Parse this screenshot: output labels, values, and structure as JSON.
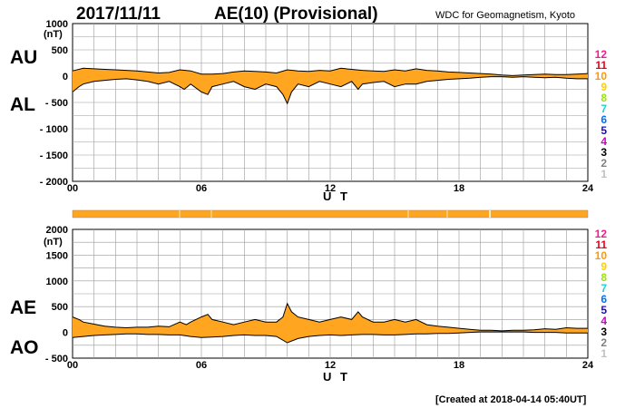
{
  "header": {
    "date": "2017/11/11",
    "title": "AE(10) (Provisional)",
    "source": "WDC for Geomagnetism, Kyoto"
  },
  "footer": {
    "created": "[Created at 2018-04-14 05:40UT]"
  },
  "stations": {
    "labels": [
      "12",
      "11",
      "10",
      "9",
      "8",
      "7",
      "6",
      "5",
      "4",
      "3",
      "2",
      "1"
    ],
    "colors": [
      "#ff1493",
      "#e8001c",
      "#ff9900",
      "#ffd000",
      "#99e600",
      "#20d0d0",
      "#0070ff",
      "#1a0ccc",
      "#cc00cc",
      "#000000",
      "#808080",
      "#c0c0c0"
    ]
  },
  "colors": {
    "fill": "#ffa51f",
    "line": "#000000",
    "grid": "#999999"
  },
  "chart_data": [
    {
      "type": "area",
      "title": "AU / AL",
      "labels": {
        "upper": "AU",
        "lower": "AL"
      },
      "unit": "(nT)",
      "xlabel": "U T",
      "xlim": [
        0,
        24
      ],
      "ylim": [
        -2000,
        1000
      ],
      "yticks": [
        1000,
        500,
        0,
        -500,
        -1000,
        -1500,
        -2000
      ],
      "ytick_labels": [
        "1000",
        "500",
        "0",
        "- 500",
        "- 1000",
        "- 1500",
        "- 2000"
      ],
      "xticks": [
        0,
        6,
        12,
        18,
        24
      ],
      "xtick_labels": [
        "00",
        "06",
        "12",
        "18",
        "24"
      ],
      "series": [
        {
          "name": "AU",
          "x": [
            0,
            0.5,
            1,
            1.5,
            2,
            2.5,
            3,
            3.5,
            4,
            4.5,
            5,
            5.5,
            6,
            6.5,
            7,
            7.5,
            8,
            8.5,
            9,
            9.5,
            10,
            10.5,
            11,
            11.5,
            12,
            12.5,
            13,
            13.5,
            14,
            14.5,
            15,
            15.5,
            16,
            16.5,
            17,
            17.5,
            18,
            18.5,
            19,
            19.5,
            20,
            20.5,
            21,
            21.5,
            22,
            22.5,
            23,
            23.5,
            24
          ],
          "values": [
            100,
            150,
            140,
            130,
            120,
            110,
            100,
            80,
            60,
            70,
            120,
            100,
            40,
            40,
            50,
            80,
            100,
            90,
            80,
            60,
            120,
            100,
            90,
            110,
            100,
            150,
            130,
            110,
            100,
            90,
            120,
            100,
            140,
            110,
            100,
            80,
            70,
            60,
            50,
            40,
            20,
            10,
            20,
            30,
            40,
            30,
            30,
            40,
            50
          ]
        },
        {
          "name": "AL",
          "x": [
            0,
            0.3,
            0.5,
            1,
            1.5,
            2,
            2.5,
            3,
            3.5,
            4,
            4.5,
            5,
            5.2,
            5.5,
            6,
            6.3,
            6.5,
            7,
            7.5,
            8,
            8.5,
            9,
            9.5,
            9.8,
            10,
            10.2,
            10.5,
            11,
            11.5,
            12,
            12.5,
            13,
            13.3,
            13.5,
            14,
            14.5,
            15,
            15.5,
            16,
            16.5,
            17,
            17.5,
            18,
            18.5,
            19,
            19.5,
            20,
            20.5,
            21,
            21.5,
            22,
            22.5,
            23,
            23.5,
            24
          ],
          "values": [
            -300,
            -200,
            -150,
            -100,
            -80,
            -60,
            -50,
            -70,
            -100,
            -150,
            -100,
            -200,
            -250,
            -150,
            -300,
            -350,
            -200,
            -150,
            -100,
            -200,
            -250,
            -150,
            -200,
            -350,
            -520,
            -300,
            -150,
            -200,
            -100,
            -150,
            -200,
            -100,
            -250,
            -150,
            -120,
            -100,
            -200,
            -150,
            -150,
            -100,
            -80,
            -60,
            -50,
            -40,
            -20,
            -10,
            -10,
            -20,
            -10,
            -20,
            -30,
            -20,
            -40,
            -50,
            -50
          ]
        }
      ]
    },
    {
      "type": "area",
      "title": "AE / AO",
      "labels": {
        "upper": "AE",
        "lower": "AO"
      },
      "unit": "(nT)",
      "xlabel": "U T",
      "xlim": [
        0,
        24
      ],
      "ylim": [
        -500,
        2000
      ],
      "yticks": [
        2000,
        1500,
        1000,
        500,
        0,
        -500
      ],
      "ytick_labels": [
        "2000",
        "1500",
        "1000",
        "500",
        "0",
        "- 500"
      ],
      "xticks": [
        0,
        6,
        12,
        18,
        24
      ],
      "xtick_labels": [
        "00",
        "06",
        "12",
        "18",
        "24"
      ],
      "series": [
        {
          "name": "AE",
          "x": [
            0,
            0.3,
            0.5,
            1,
            1.5,
            2,
            2.5,
            3,
            3.5,
            4,
            4.5,
            5,
            5.3,
            5.5,
            6,
            6.3,
            6.5,
            7,
            7.5,
            8,
            8.5,
            9,
            9.5,
            9.8,
            10,
            10.2,
            10.5,
            11,
            11.5,
            12,
            12.5,
            13,
            13.3,
            13.5,
            14,
            14.5,
            15,
            15.5,
            16,
            16.5,
            17,
            17.5,
            18,
            18.5,
            19,
            19.5,
            20,
            20.5,
            21,
            21.5,
            22,
            22.5,
            23,
            23.5,
            24
          ],
          "values": [
            300,
            250,
            200,
            160,
            120,
            100,
            90,
            100,
            100,
            120,
            110,
            200,
            150,
            200,
            300,
            350,
            250,
            200,
            150,
            200,
            250,
            200,
            200,
            300,
            560,
            400,
            300,
            250,
            200,
            250,
            300,
            250,
            400,
            300,
            200,
            200,
            250,
            200,
            250,
            150,
            120,
            100,
            80,
            60,
            40,
            40,
            30,
            40,
            40,
            50,
            70,
            60,
            90,
            80,
            80
          ]
        },
        {
          "name": "AO",
          "x": [
            0,
            0.5,
            1,
            1.5,
            2,
            2.5,
            3,
            3.5,
            4,
            4.5,
            5,
            5.5,
            6,
            6.5,
            7,
            7.5,
            8,
            8.5,
            9,
            9.5,
            10,
            10.5,
            11,
            11.5,
            12,
            12.5,
            13,
            13.5,
            14,
            14.5,
            15,
            15.5,
            16,
            16.5,
            17,
            17.5,
            18,
            18.5,
            19,
            19.5,
            20,
            20.5,
            21,
            21.5,
            22,
            22.5,
            23,
            23.5,
            24
          ],
          "values": [
            -100,
            -80,
            -60,
            -50,
            -40,
            -30,
            -30,
            -40,
            -40,
            -50,
            -50,
            -80,
            -100,
            -90,
            -80,
            -60,
            -50,
            -60,
            -60,
            -80,
            -200,
            -120,
            -80,
            -60,
            -50,
            -60,
            -50,
            -40,
            -40,
            -50,
            -50,
            -40,
            -30,
            -30,
            -20,
            -20,
            -10,
            0,
            10,
            10,
            10,
            10,
            10,
            0,
            0,
            0,
            -10,
            -10,
            -10
          ]
        }
      ]
    }
  ]
}
